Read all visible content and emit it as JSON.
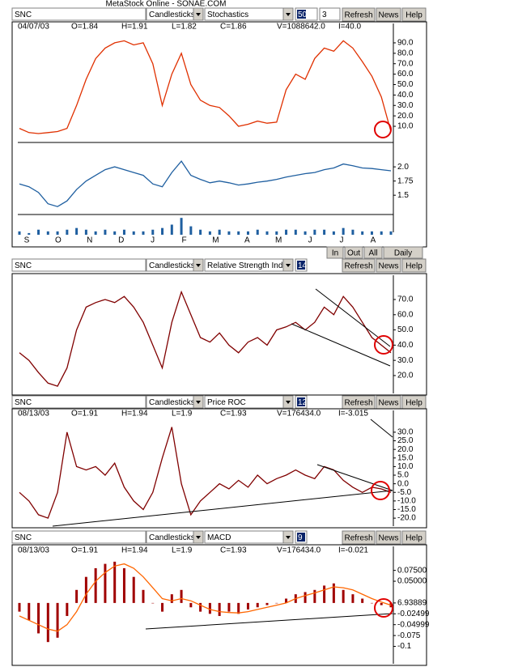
{
  "title": "MetaStock Online - SONAE.COM",
  "panels": [
    {
      "toolbar": {
        "symbol": "SNC",
        "style": "Candlesticks",
        "indicator": "Stochastics",
        "params": [
          "50",
          "3"
        ],
        "buttons": [
          "Refresh",
          "News",
          "Help"
        ]
      },
      "header": [
        "04/07/03",
        "O=1.84",
        "H=1.91",
        "L=1.82",
        "C=1.86",
        "V=1088642.0",
        "I=40.0"
      ],
      "plots": [
        {
          "ylim": [
            -5.5,
            101.6
          ],
          "yticks": [
            {
              "value": 90,
              "label": "90.0"
            },
            {
              "value": 80,
              "label": "80.0"
            },
            {
              "value": 70,
              "label": "70.0"
            },
            {
              "value": 60,
              "label": "60.0"
            },
            {
              "value": 50,
              "label": "50.0"
            },
            {
              "value": 40,
              "label": "40.0"
            },
            {
              "value": 30,
              "label": "30.0"
            },
            {
              "value": 20,
              "label": "20.0"
            },
            {
              "value": 10,
              "label": "10.0"
            }
          ],
          "series": [
            {
              "kind": "line",
              "color": "#e03000",
              "values": [
                8,
                4,
                3,
                4,
                5,
                8,
                30,
                55,
                75,
                85,
                90,
                92,
                88,
                90,
                70,
                30,
                60,
                80,
                50,
                35,
                30,
                28,
                20,
                10,
                12,
                15,
                13,
                14,
                45,
                60,
                55,
                75,
                85,
                82,
                92,
                85,
                72,
                58,
                38,
                5
              ]
            }
          ]
        },
        {
          "ylim": [
            1.16,
            2.43
          ],
          "yticks": [
            {
              "value": 2,
              "label": "2.0"
            },
            1.75,
            1.5
          ],
          "series": [
            {
              "kind": "line",
              "color": "#1f5fa0",
              "values": [
                1.7,
                1.65,
                1.55,
                1.35,
                1.3,
                1.4,
                1.6,
                1.75,
                1.85,
                1.95,
                2.0,
                1.95,
                1.9,
                1.85,
                1.7,
                1.65,
                1.9,
                2.1,
                1.85,
                1.78,
                1.72,
                1.75,
                1.72,
                1.68,
                1.7,
                1.73,
                1.75,
                1.78,
                1.82,
                1.85,
                1.88,
                1.9,
                1.95,
                1.98,
                2.05,
                2.02,
                1.98,
                1.97,
                1.95,
                1.93
              ]
            }
          ]
        },
        {
          "ylim": [
            0,
            12
          ],
          "yticks": [],
          "series": [
            {
              "kind": "bars",
              "color": "#1f5fa0",
              "values": [
                2,
                1,
                3,
                2,
                2,
                3,
                4,
                3,
                2,
                3,
                2,
                3,
                2,
                2,
                3,
                4,
                6,
                10,
                5,
                3,
                2,
                3,
                2,
                2,
                2,
                3,
                2,
                2,
                3,
                3,
                2,
                3,
                3,
                2,
                4,
                3,
                2,
                2,
                2,
                2
              ]
            }
          ]
        }
      ],
      "months": [
        "S",
        "O",
        "N",
        "D",
        "J",
        "F",
        "M",
        "A",
        "M",
        "J",
        "J",
        "A"
      ],
      "nav": [
        "In",
        "Out",
        "All",
        "Daily"
      ]
    },
    {
      "toolbar": {
        "symbol": "SNC",
        "style": "Candlesticks",
        "indicator": "Relative Strength Index",
        "params": [
          "14"
        ],
        "buttons": [
          "Refresh",
          "News",
          "Help"
        ]
      },
      "plots": [
        {
          "ylim": [
            8.8,
            83.3
          ],
          "yticks": [
            {
              "value": 70,
              "label": "70.0"
            },
            {
              "value": 60,
              "label": "60.0"
            },
            {
              "value": 50,
              "label": "50.0"
            },
            {
              "value": 40,
              "label": "40.0"
            },
            {
              "value": 30,
              "label": "30.0"
            },
            {
              "value": 20,
              "label": "20.0"
            }
          ],
          "series": [
            {
              "kind": "line",
              "color": "#800000",
              "values": [
                35,
                30,
                22,
                15,
                13,
                25,
                50,
                65,
                68,
                70,
                68,
                72,
                65,
                55,
                40,
                25,
                55,
                75,
                60,
                45,
                42,
                48,
                40,
                35,
                42,
                45,
                40,
                50,
                52,
                55,
                50,
                55,
                65,
                60,
                72,
                65,
                55,
                45,
                40,
                35
              ]
            }
          ]
        }
      ]
    },
    {
      "toolbar": {
        "symbol": "SNC",
        "style": "Candlesticks",
        "indicator": "Price ROC",
        "params": [
          "12"
        ],
        "buttons": [
          "Refresh",
          "News",
          "Help"
        ]
      },
      "header": [
        "08/13/03",
        "O=1.91",
        "H=1.94",
        "L=1.9",
        "C=1.93",
        "V=176434.0",
        "I=-3.015"
      ],
      "plots": [
        {
          "ylim": [
            -25.6,
            37.5
          ],
          "yticks": [
            {
              "value": 30,
              "label": "30.0"
            },
            {
              "value": 25,
              "label": "25.0"
            },
            {
              "value": 20,
              "label": "20.0"
            },
            {
              "value": 15,
              "label": "15.0"
            },
            {
              "value": 10,
              "label": "10.0"
            },
            {
              "value": 5,
              "label": "5.0"
            },
            {
              "value": 0,
              "label": "0.0"
            },
            {
              "value": -5,
              "label": "-5.0"
            },
            {
              "value": -10,
              "label": "-10.0"
            },
            {
              "value": -15,
              "label": "-15.0"
            },
            {
              "value": -20,
              "label": "-20.0"
            }
          ],
          "series": [
            {
              "kind": "line",
              "color": "#800000",
              "values": [
                -5,
                -10,
                -18,
                -20,
                -5,
                30,
                10,
                8,
                10,
                5,
                12,
                -2,
                -10,
                -15,
                -5,
                15,
                33,
                0,
                -18,
                -10,
                -5,
                0,
                -3,
                2,
                -2,
                5,
                0,
                3,
                5,
                8,
                5,
                3,
                10,
                8,
                2,
                -2,
                -5,
                -2,
                -3,
                -5
              ]
            }
          ]
        }
      ]
    },
    {
      "toolbar": {
        "symbol": "SNC",
        "style": "Candlesticks",
        "indicator": "MACD",
        "params": [
          "9"
        ],
        "buttons": [
          "Refresh",
          "News",
          "Help"
        ]
      },
      "header": [
        "08/13/03",
        "O=1.91",
        "H=1.94",
        "L=1.9",
        "C=1.93",
        "V=176434.0",
        "I=-0.021"
      ],
      "plots": [
        {
          "ylim": [
            -0.14,
            0.106
          ],
          "yticks": [
            {
              "value": 0.075,
              "label": "0.07500"
            },
            {
              "value": 0.05,
              "label": "0.05000"
            },
            {
              "value": 6.93889e-18,
              "label": "6.93889"
            },
            -0.02499,
            -0.04999,
            -0.075,
            -0.1
          ],
          "series": [
            {
              "kind": "bars",
              "color": "#a00000",
              "values": [
                -0.02,
                -0.04,
                -0.07,
                -0.09,
                -0.08,
                -0.03,
                0.03,
                0.06,
                0.08,
                0.09,
                0.095,
                0.08,
                0.06,
                0.03,
                0.0,
                -0.02,
                0.02,
                0.03,
                -0.01,
                -0.02,
                -0.025,
                -0.03,
                -0.02,
                -0.025,
                -0.015,
                -0.01,
                -0.005,
                0.0,
                0.01,
                0.02,
                0.025,
                0.03,
                0.04,
                0.045,
                0.03,
                0.02,
                0.01,
                0.0,
                -0.005,
                -0.01
              ]
            },
            {
              "kind": "line",
              "color": "#ff6600",
              "values": [
                -0.03,
                -0.04,
                -0.05,
                -0.06,
                -0.065,
                -0.05,
                -0.02,
                0.02,
                0.05,
                0.07,
                0.085,
                0.09,
                0.08,
                0.06,
                0.035,
                0.01,
                0.005,
                0.01,
                0.005,
                -0.005,
                -0.015,
                -0.02,
                -0.022,
                -0.023,
                -0.02,
                -0.015,
                -0.01,
                -0.005,
                0.0,
                0.01,
                0.017,
                0.023,
                0.03,
                0.037,
                0.035,
                0.03,
                0.02,
                0.01,
                0.002,
                -0.005
              ]
            }
          ]
        }
      ]
    }
  ]
}
